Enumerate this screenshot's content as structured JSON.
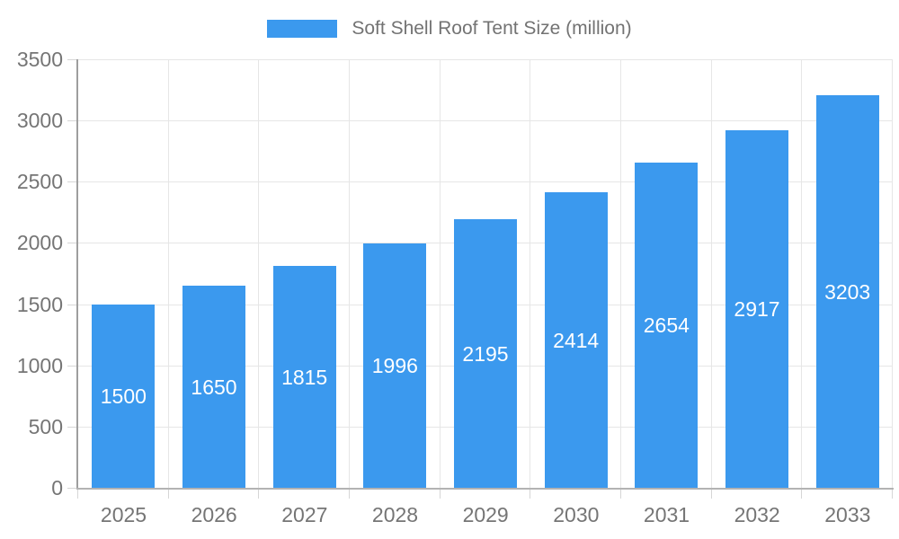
{
  "legend": {
    "label": "Soft Shell Roof Tent Size (million)"
  },
  "colors": {
    "bar": "#3B99EE",
    "bar_label": "#FFFFFF",
    "grid": "#E6E6E6",
    "axis_y": "#9E9E9E",
    "axis_x": "#B3B3B3",
    "tick": "#D6D6D6",
    "tick_label": "#757575",
    "legend_text": "#737373"
  },
  "chart_data": {
    "type": "bar",
    "categories": [
      "2025",
      "2026",
      "2027",
      "2028",
      "2029",
      "2030",
      "2031",
      "2032",
      "2033"
    ],
    "values": [
      1500,
      1650,
      1815,
      1996,
      2195,
      2414,
      2654,
      2917,
      3203
    ],
    "title": "",
    "xlabel": "",
    "ylabel": "",
    "legend_entries": [
      "Soft Shell Roof Tent Size (million)"
    ],
    "legend_position": "top-center",
    "ylim": [
      0,
      3500
    ],
    "yticks": [
      0,
      500,
      1000,
      1500,
      2000,
      2500,
      3000,
      3500
    ],
    "grid": true,
    "bar_label_position": "inside-center",
    "bar_label_color": "#FFFFFF"
  }
}
